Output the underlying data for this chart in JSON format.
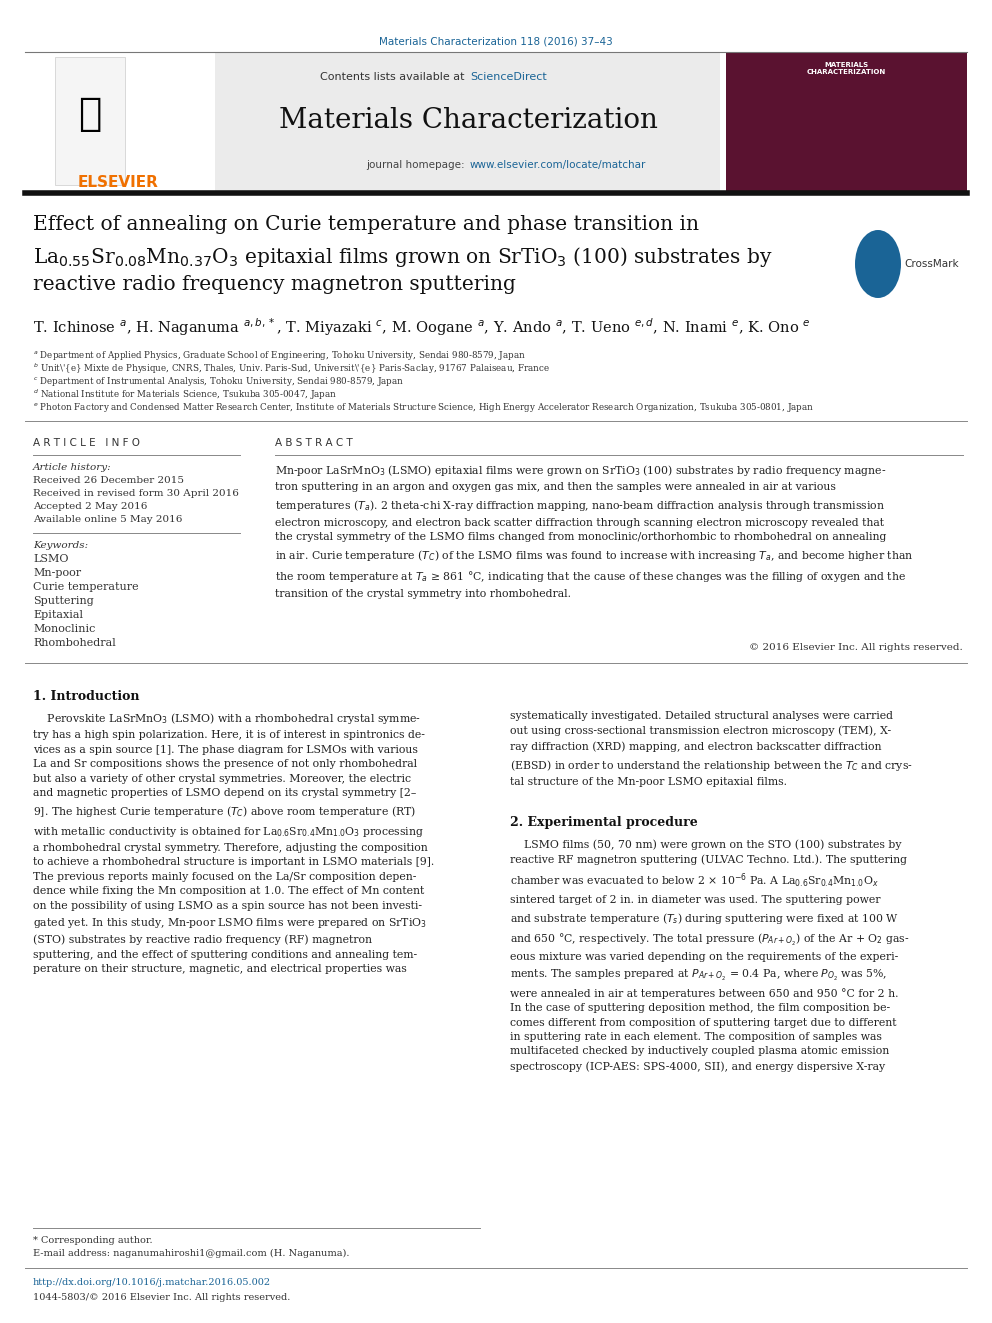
{
  "page_width": 9.92,
  "page_height": 13.23,
  "bg_color": "#ffffff",
  "top_citation": "Materials Characterization 118 (2016) 37–43",
  "top_citation_color": "#1a6496",
  "journal_name": "Materials Characterization",
  "sciencedirect_color": "#1a6496",
  "homepage_url_color": "#1a6496",
  "header_bg": "#ebebeb",
  "article_info_header": "A R T I C L E   I N F O",
  "abstract_header": "A B S T R A C T",
  "keywords": [
    "LSMO",
    "Mn-poor",
    "Curie temperature",
    "Sputtering",
    "Epitaxial",
    "Monoclinic",
    "Rhombohedral"
  ],
  "copyright": "© 2016 Elsevier Inc. All rights reserved."
}
